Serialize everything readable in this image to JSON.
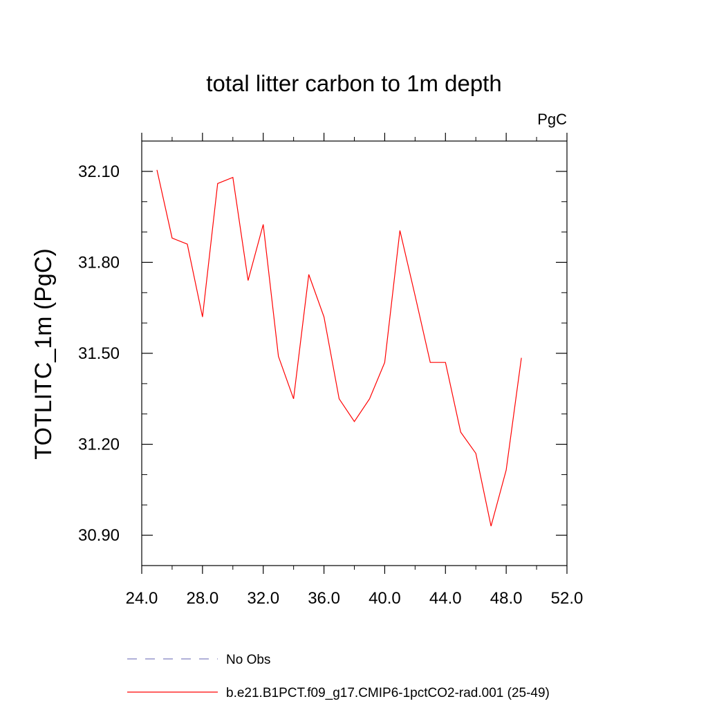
{
  "chart_data": {
    "type": "line",
    "title": "total litter carbon to 1m depth",
    "units_label": "PgC",
    "xlabel": "",
    "ylabel": "TOTLITC_1m  (PgC)",
    "xlim": [
      24.0,
      52.0
    ],
    "ylim": [
      30.8,
      32.2
    ],
    "xticks": [
      "24.0",
      "28.0",
      "32.0",
      "36.0",
      "40.0",
      "44.0",
      "48.0",
      "52.0"
    ],
    "yticks": [
      "30.90",
      "31.20",
      "31.50",
      "31.80",
      "32.10"
    ],
    "grid": false,
    "legend_position": "bottom",
    "series": [
      {
        "name": "b.e21.B1PCT.f09_g17.CMIP6-1pctCO2-rad.001 (25-49)",
        "color": "#ff0000",
        "style": "solid",
        "x": [
          25,
          26,
          27,
          28,
          29,
          30,
          31,
          32,
          33,
          34,
          35,
          36,
          37,
          38,
          39,
          40,
          41,
          42,
          43,
          44,
          45,
          46,
          47,
          48,
          49
        ],
        "y": [
          32.105,
          31.88,
          31.86,
          31.62,
          32.06,
          32.08,
          31.74,
          31.925,
          31.49,
          31.35,
          31.76,
          31.62,
          31.35,
          31.275,
          31.35,
          31.47,
          31.905,
          31.69,
          31.47,
          31.47,
          31.24,
          31.17,
          30.93,
          31.115,
          31.485
        ]
      }
    ],
    "legend": [
      {
        "label": "No Obs",
        "color": "#8080c0",
        "style": "dashed"
      },
      {
        "label": "b.e21.B1PCT.f09_g17.CMIP6-1pctCO2-rad.001 (25-49)",
        "color": "#ff0000",
        "style": "solid"
      }
    ]
  }
}
